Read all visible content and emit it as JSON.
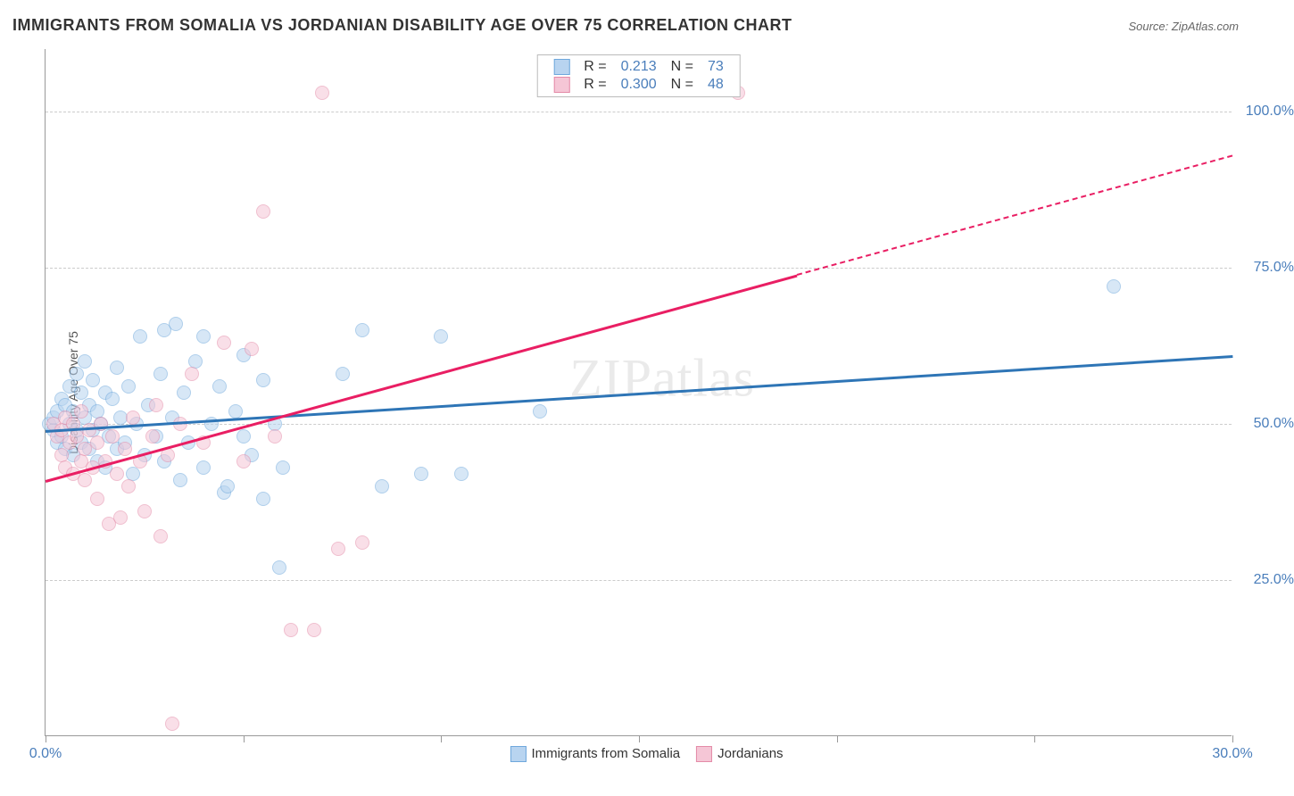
{
  "chart": {
    "type": "scatter",
    "title": "IMMIGRANTS FROM SOMALIA VS JORDANIAN DISABILITY AGE OVER 75 CORRELATION CHART",
    "source": "Source: ZipAtlas.com",
    "watermark": "ZIPatlas",
    "ylabel": "Disability Age Over 75",
    "xlim": [
      0,
      30
    ],
    "ylim": [
      0,
      110
    ],
    "x_ticks": [
      0,
      5,
      10,
      15,
      20,
      25,
      30
    ],
    "x_tick_labels": {
      "0": "0.0%",
      "30": "30.0%"
    },
    "y_gridlines": [
      25,
      50,
      75,
      100
    ],
    "y_tick_labels": {
      "25": "25.0%",
      "50": "50.0%",
      "75": "75.0%",
      "100": "100.0%"
    },
    "background_color": "#ffffff",
    "grid_color": "#cccccc",
    "axis_color": "#999999",
    "tick_label_color": "#4a7ebb",
    "title_color": "#333333",
    "marker_radius": 8,
    "marker_stroke_width": 1.5,
    "series": [
      {
        "name": "Immigrants from Somalia",
        "fill": "#b8d4f0",
        "stroke": "#6fa8dc",
        "fill_opacity": 0.55,
        "R": "0.213",
        "N": "73",
        "trend": {
          "x1": 0,
          "y1": 49,
          "x2": 30,
          "y2": 61,
          "color": "#2e75b6",
          "width": 2.5,
          "dash_from_x": null
        },
        "points": [
          [
            0.1,
            50
          ],
          [
            0.2,
            49
          ],
          [
            0.2,
            51
          ],
          [
            0.3,
            47
          ],
          [
            0.3,
            52
          ],
          [
            0.4,
            48
          ],
          [
            0.4,
            54
          ],
          [
            0.5,
            46
          ],
          [
            0.5,
            53
          ],
          [
            0.6,
            50
          ],
          [
            0.6,
            56
          ],
          [
            0.7,
            45
          ],
          [
            0.7,
            52
          ],
          [
            0.8,
            49
          ],
          [
            0.8,
            58
          ],
          [
            0.9,
            47
          ],
          [
            0.9,
            55
          ],
          [
            1.0,
            51
          ],
          [
            1.0,
            60
          ],
          [
            1.1,
            46
          ],
          [
            1.1,
            53
          ],
          [
            1.2,
            49
          ],
          [
            1.2,
            57
          ],
          [
            1.3,
            44
          ],
          [
            1.3,
            52
          ],
          [
            1.4,
            50
          ],
          [
            1.5,
            55
          ],
          [
            1.5,
            43
          ],
          [
            1.6,
            48
          ],
          [
            1.7,
            54
          ],
          [
            1.8,
            46
          ],
          [
            1.8,
            59
          ],
          [
            1.9,
            51
          ],
          [
            2.0,
            47
          ],
          [
            2.1,
            56
          ],
          [
            2.2,
            42
          ],
          [
            2.3,
            50
          ],
          [
            2.4,
            64
          ],
          [
            2.5,
            45
          ],
          [
            2.6,
            53
          ],
          [
            2.8,
            48
          ],
          [
            2.9,
            58
          ],
          [
            3.0,
            44
          ],
          [
            3.0,
            65
          ],
          [
            3.2,
            51
          ],
          [
            3.3,
            66
          ],
          [
            3.4,
            41
          ],
          [
            3.5,
            55
          ],
          [
            3.6,
            47
          ],
          [
            3.8,
            60
          ],
          [
            4.0,
            43
          ],
          [
            4.0,
            64
          ],
          [
            4.2,
            50
          ],
          [
            4.4,
            56
          ],
          [
            4.5,
            39
          ],
          [
            4.6,
            40
          ],
          [
            4.8,
            52
          ],
          [
            5.0,
            48
          ],
          [
            5.0,
            61
          ],
          [
            5.2,
            45
          ],
          [
            5.5,
            57
          ],
          [
            5.5,
            38
          ],
          [
            5.8,
            50
          ],
          [
            5.9,
            27
          ],
          [
            6.0,
            43
          ],
          [
            7.5,
            58
          ],
          [
            8.0,
            65
          ],
          [
            8.5,
            40
          ],
          [
            9.5,
            42
          ],
          [
            10.0,
            64
          ],
          [
            10.5,
            42
          ],
          [
            12.5,
            52
          ],
          [
            27.0,
            72
          ]
        ]
      },
      {
        "name": "Jordanians",
        "fill": "#f5c6d6",
        "stroke": "#e48ba8",
        "fill_opacity": 0.55,
        "R": "0.300",
        "N": "48",
        "trend": {
          "x1": 0,
          "y1": 41,
          "x2": 30,
          "y2": 93,
          "color": "#e91e63",
          "width": 2.5,
          "dash_from_x": 19
        },
        "points": [
          [
            0.2,
            50
          ],
          [
            0.3,
            48
          ],
          [
            0.4,
            49
          ],
          [
            0.4,
            45
          ],
          [
            0.5,
            51
          ],
          [
            0.5,
            43
          ],
          [
            0.6,
            47
          ],
          [
            0.7,
            50
          ],
          [
            0.7,
            42
          ],
          [
            0.8,
            48
          ],
          [
            0.9,
            44
          ],
          [
            0.9,
            52
          ],
          [
            1.0,
            46
          ],
          [
            1.0,
            41
          ],
          [
            1.1,
            49
          ],
          [
            1.2,
            43
          ],
          [
            1.3,
            47
          ],
          [
            1.3,
            38
          ],
          [
            1.4,
            50
          ],
          [
            1.5,
            44
          ],
          [
            1.6,
            34
          ],
          [
            1.7,
            48
          ],
          [
            1.8,
            42
          ],
          [
            1.9,
            35
          ],
          [
            2.0,
            46
          ],
          [
            2.1,
            40
          ],
          [
            2.2,
            51
          ],
          [
            2.4,
            44
          ],
          [
            2.5,
            36
          ],
          [
            2.7,
            48
          ],
          [
            2.8,
            53
          ],
          [
            2.9,
            32
          ],
          [
            3.1,
            45
          ],
          [
            3.2,
            2
          ],
          [
            3.4,
            50
          ],
          [
            3.7,
            58
          ],
          [
            4.0,
            47
          ],
          [
            4.5,
            63
          ],
          [
            5.0,
            44
          ],
          [
            5.2,
            62
          ],
          [
            5.5,
            84
          ],
          [
            5.8,
            48
          ],
          [
            6.2,
            17
          ],
          [
            6.8,
            17
          ],
          [
            7.0,
            103
          ],
          [
            7.4,
            30
          ],
          [
            8.0,
            31
          ],
          [
            17.5,
            103
          ]
        ]
      }
    ],
    "legend_top": {
      "rows": [
        {
          "swatch_fill": "#b8d4f0",
          "swatch_stroke": "#6fa8dc",
          "labelR": "R =",
          "valR": "0.213",
          "labelN": "N =",
          "valN": "73"
        },
        {
          "swatch_fill": "#f5c6d6",
          "swatch_stroke": "#e48ba8",
          "labelR": "R =",
          "valR": "0.300",
          "labelN": "N =",
          "valN": "48"
        }
      ]
    },
    "legend_bottom": [
      {
        "swatch_fill": "#b8d4f0",
        "swatch_stroke": "#6fa8dc",
        "label": "Immigrants from Somalia"
      },
      {
        "swatch_fill": "#f5c6d6",
        "swatch_stroke": "#e48ba8",
        "label": "Jordanians"
      }
    ]
  }
}
